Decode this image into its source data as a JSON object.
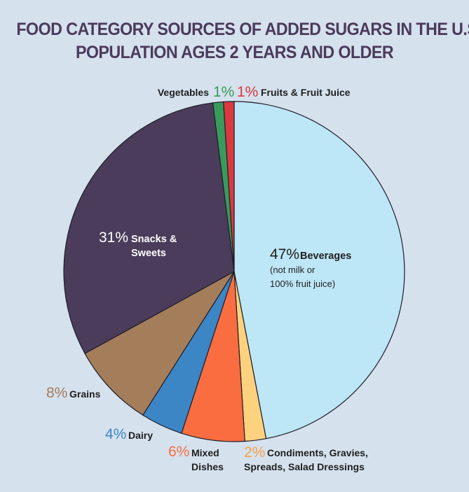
{
  "chart_data": {
    "type": "pie",
    "title_lines": [
      "FOOD CATEGORY SOURCES OF ADDED SUGARS IN THE U.S.",
      "POPULATION AGES 2 YEARS AND OLDER"
    ],
    "slices": [
      {
        "pct_label": "47%",
        "value": 47,
        "color": "#bde6f6",
        "label_lines": [
          "Beverages"
        ],
        "sub_lines": [
          "(not milk or",
          "100% fruit juice)"
        ]
      },
      {
        "pct_label": "2%",
        "value": 2,
        "color": "#fdd27f",
        "label_lines": [
          "Condiments, Gravies,",
          "Spreads, Salad Dressings"
        ]
      },
      {
        "pct_label": "6%",
        "value": 6,
        "color": "#f96d40",
        "label_lines": [
          "Mixed",
          "Dishes"
        ]
      },
      {
        "pct_label": "4%",
        "value": 4,
        "color": "#3d86c6",
        "label_lines": [
          "Dairy"
        ]
      },
      {
        "pct_label": "8%",
        "value": 8,
        "color": "#a47d5b",
        "label_lines": [
          "Grains"
        ]
      },
      {
        "pct_label": "31%",
        "value": 31,
        "color": "#4a3c5a",
        "label_lines": [
          "Snacks &",
          "Sweets"
        ]
      },
      {
        "pct_label": "1%",
        "value": 1,
        "color": "#3a9a5c",
        "label_lines": [
          "Vegetables"
        ]
      },
      {
        "pct_label": "1%",
        "value": 1,
        "color": "#d9393f",
        "label_lines": [
          "Fruits & Fruit Juice"
        ]
      }
    ]
  }
}
